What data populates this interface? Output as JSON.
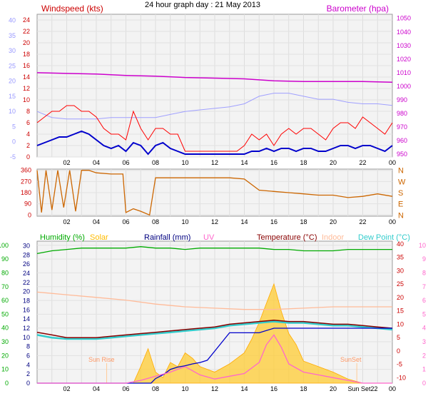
{
  "page_title": "24 hour graph day : 21 May 2013",
  "chart_data": [
    {
      "id": "wind-baro",
      "type": "line",
      "left_axis_outer": {
        "ticks": [
          "-5",
          "0",
          "5",
          "10",
          "15",
          "20",
          "25",
          "30",
          "35",
          "40"
        ],
        "color": "#9999ff"
      },
      "left_axis_inner": {
        "ticks": [
          "0",
          "2",
          "4",
          "6",
          "8",
          "10",
          "12",
          "14",
          "16",
          "18",
          "20",
          "22",
          "24"
        ],
        "color": "#cc0000"
      },
      "right_axis": {
        "ticks": [
          "950",
          "960",
          "970",
          "980",
          "990",
          "1000",
          "1010",
          "1020",
          "1030",
          "1040",
          "1050"
        ],
        "color": "#cc00cc"
      },
      "x_ticks": [
        "02",
        "04",
        "06",
        "08",
        "10",
        "12",
        "14",
        "16",
        "18",
        "20",
        "22",
        "00"
      ],
      "labels": {
        "windspeed": "Windspeed (kts)",
        "barometer": "Barometer (hpa)"
      },
      "colors": {
        "gust": "#ff0000",
        "avg": "#0000cc",
        "temp": "#a0a0ff",
        "baro": "#cc00cc"
      },
      "series": [
        {
          "key": "baro",
          "x": [
            0,
            2,
            4,
            6,
            8,
            10,
            12,
            14,
            16,
            18,
            20,
            22,
            24
          ],
          "values": [
            1010,
            1009.5,
            1009,
            1008,
            1007.5,
            1006.5,
            1006,
            1005.5,
            1004,
            1003.5,
            1003.5,
            1003.5,
            1003
          ]
        },
        {
          "key": "temp",
          "x": [
            0,
            1,
            2,
            3,
            4,
            5,
            6,
            7,
            8,
            9,
            10,
            11,
            12,
            13,
            14,
            15,
            16,
            17,
            18,
            19,
            20,
            21,
            22,
            23,
            24
          ],
          "values": [
            10,
            8,
            7.5,
            7.5,
            7.5,
            8,
            8,
            8,
            8,
            9,
            10,
            10.5,
            11,
            11.5,
            12.5,
            15,
            16,
            16,
            15,
            14,
            14,
            13,
            12.5,
            12.5,
            12
          ]
        },
        {
          "key": "gust",
          "x": [
            0,
            0.5,
            1,
            1.5,
            2,
            2.5,
            3,
            3.5,
            4,
            4.5,
            5,
            5.5,
            6,
            6.5,
            7,
            7.5,
            8,
            8.5,
            9,
            9.5,
            10,
            10.5,
            11,
            11.5,
            12,
            12.5,
            13,
            13.5,
            14,
            14.5,
            15,
            15.5,
            16,
            16.5,
            17,
            17.5,
            18,
            18.5,
            19,
            19.5,
            20,
            20.5,
            21,
            21.5,
            22,
            22.5,
            23,
            23.5,
            24
          ],
          "values": [
            6,
            7,
            8,
            8,
            9,
            9,
            8,
            8,
            7,
            5,
            4,
            4,
            3,
            8,
            5,
            3,
            5,
            5,
            4,
            4,
            1,
            1,
            1,
            1,
            1,
            1,
            1,
            1,
            2,
            4,
            3,
            4,
            2,
            4,
            5,
            4,
            5,
            5,
            4,
            3,
            5,
            6,
            6,
            5,
            7,
            6,
            5,
            4,
            6
          ]
        },
        {
          "key": "avg",
          "x": [
            0,
            0.5,
            1,
            1.5,
            2,
            2.5,
            3,
            3.5,
            4,
            4.5,
            5,
            5.5,
            6,
            6.5,
            7,
            7.5,
            8,
            8.5,
            9,
            9.5,
            10,
            10.5,
            11,
            11.5,
            12,
            12.5,
            13,
            13.5,
            14,
            14.5,
            15,
            15.5,
            16,
            16.5,
            17,
            17.5,
            18,
            18.5,
            19,
            19.5,
            20,
            20.5,
            21,
            21.5,
            22,
            22.5,
            23,
            23.5,
            24
          ],
          "values": [
            2,
            2.5,
            3,
            3.5,
            3.5,
            4,
            4.5,
            4,
            3,
            2,
            1.5,
            2,
            1,
            2.5,
            2,
            0.5,
            2,
            2.5,
            1.5,
            1,
            0.5,
            0.5,
            0.5,
            0.5,
            0.5,
            0.5,
            0.5,
            0.5,
            0.5,
            1,
            1,
            1.5,
            1,
            1.5,
            1.5,
            1,
            1.5,
            1.5,
            1,
            1,
            1.5,
            2,
            2,
            1.5,
            2,
            2,
            1.5,
            1,
            2
          ]
        }
      ]
    },
    {
      "id": "wind-direction",
      "type": "line",
      "left_axis": {
        "ticks": [
          "0",
          "90",
          "180",
          "270",
          "360"
        ],
        "color": "#cc0000"
      },
      "right_axis": {
        "ticks": [
          "N",
          "E",
          "S",
          "W",
          "N"
        ],
        "color": "#cc6600"
      },
      "x_ticks": [
        "02",
        "04",
        "06",
        "08",
        "10",
        "12",
        "14",
        "16",
        "18",
        "20",
        "22",
        "00"
      ],
      "colors": {
        "direction": "#cc6600"
      },
      "series": [
        {
          "key": "direction",
          "x": [
            0,
            0.3,
            0.6,
            1,
            1.4,
            1.8,
            2.2,
            2.6,
            3,
            3.5,
            4,
            5,
            5.8,
            6,
            6.5,
            7,
            7.6,
            8,
            9,
            10,
            11,
            12,
            13,
            14,
            15,
            16,
            17,
            18,
            19,
            20,
            21,
            22,
            23,
            24
          ],
          "values": [
            360,
            20,
            360,
            40,
            360,
            60,
            360,
            30,
            360,
            360,
            340,
            330,
            330,
            20,
            50,
            30,
            0,
            300,
            300,
            300,
            300,
            300,
            300,
            290,
            200,
            190,
            180,
            170,
            160,
            160,
            140,
            150,
            170,
            150
          ]
        }
      ]
    },
    {
      "id": "humidity-temp-rain",
      "type": "line",
      "humidity_axis": {
        "ticks": [
          "0",
          "10",
          "20",
          "30",
          "40",
          "50",
          "60",
          "70",
          "80",
          "90",
          "100"
        ],
        "color": "#00aa00"
      },
      "rain_axis": {
        "ticks": [
          "0",
          "2",
          "4",
          "6",
          "8",
          "10",
          "12",
          "14",
          "16",
          "18",
          "20",
          "22",
          "24",
          "26",
          "28",
          "30"
        ],
        "color": "#000080"
      },
      "temp_axis": {
        "ticks": [
          "-10",
          "-5",
          "0",
          "5",
          "10",
          "15",
          "20",
          "25",
          "30",
          "35",
          "40"
        ],
        "color": "#cc0000"
      },
      "uv_axis": {
        "ticks": [
          "0",
          "1",
          "2",
          "3",
          "4",
          "5",
          "6",
          "7",
          "8",
          "9",
          "10"
        ],
        "color": "#ff66cc"
      },
      "x_ticks": [
        "02",
        "04",
        "06",
        "08",
        "10",
        "12",
        "14",
        "16",
        "18",
        "20",
        "Sun Set22",
        "00"
      ],
      "labels": {
        "humidity": "Humidity (%)",
        "solar": "Solar",
        "rainfall": "Rainfall (mm)",
        "uv": "UV",
        "temperature": "Temperature (°C)",
        "indoor": "Indoor",
        "dew": "Dew Point (°C)",
        "sunrise": "Sun Rise",
        "sunset": "SunSet"
      },
      "colors": {
        "humidity": "#00aa00",
        "solar": "#ffcc33",
        "rain": "#0000cc",
        "uv": "#ff66cc",
        "temp": "#880000",
        "indoor": "#ffbb99",
        "dew": "#33cccc"
      },
      "series": [
        {
          "key": "humidity",
          "x": [
            0,
            1,
            2,
            3,
            4,
            5,
            6,
            7,
            8,
            9,
            10,
            11,
            12,
            13,
            14,
            15,
            16,
            17,
            18,
            19,
            20,
            21,
            22,
            23,
            24
          ],
          "values": [
            94,
            96,
            97,
            98,
            98,
            98,
            98,
            99,
            98,
            98,
            97,
            98,
            98,
            98,
            98,
            98,
            97,
            97,
            96,
            96,
            96,
            97,
            97,
            97,
            97
          ]
        },
        {
          "key": "indoor",
          "x": [
            0,
            2,
            4,
            6,
            8,
            10,
            12,
            14,
            16,
            18,
            20,
            22,
            24
          ],
          "values": [
            22,
            21,
            20,
            19,
            17.5,
            16.5,
            16,
            15.5,
            15.5,
            16,
            16.5,
            16.5,
            16.5
          ]
        },
        {
          "key": "temp",
          "x": [
            0,
            1,
            2,
            3,
            4,
            5,
            6,
            7,
            8,
            9,
            10,
            11,
            12,
            13,
            14,
            15,
            16,
            17,
            18,
            19,
            20,
            21,
            22,
            23,
            24
          ],
          "values": [
            7,
            6,
            5,
            5,
            5,
            5.5,
            6,
            6.5,
            7,
            7.5,
            8,
            8.5,
            9,
            10,
            10.5,
            11,
            11.5,
            11,
            11,
            10.5,
            10,
            10,
            9.5,
            9,
            8.5
          ]
        },
        {
          "key": "dew",
          "x": [
            0,
            1,
            2,
            3,
            4,
            5,
            6,
            7,
            8,
            9,
            10,
            11,
            12,
            13,
            14,
            15,
            16,
            17,
            18,
            19,
            20,
            21,
            22,
            23,
            24
          ],
          "values": [
            6,
            5,
            4.5,
            4.5,
            4.5,
            5,
            5.5,
            6,
            6.5,
            7,
            7.5,
            8,
            8.5,
            9.5,
            10,
            10.5,
            11,
            10.5,
            10.5,
            10,
            9.5,
            9.5,
            9,
            8.5,
            8
          ]
        },
        {
          "key": "rain",
          "x": [
            0,
            7.7,
            8,
            8.3,
            8.6,
            9,
            9.5,
            10,
            10.5,
            11,
            11.5,
            12,
            13,
            14,
            15,
            16,
            17,
            18,
            19,
            20,
            21,
            22,
            23,
            24
          ],
          "values": [
            0,
            0,
            1,
            1.5,
            2,
            3,
            3.5,
            3.8,
            4.2,
            4.5,
            5,
            7,
            11,
            11,
            11,
            12,
            12,
            12,
            12,
            12,
            12,
            12,
            12,
            12
          ]
        },
        {
          "key": "uv",
          "x": [
            0,
            6,
            7,
            8,
            9,
            10,
            11,
            12,
            13,
            14,
            15,
            15.5,
            16,
            16.5,
            17,
            18,
            19,
            20,
            21,
            22,
            24
          ],
          "values": [
            0,
            0,
            0.2,
            0.5,
            0.8,
            1.2,
            0.6,
            0.3,
            0.5,
            0.7,
            1.5,
            2.8,
            3.5,
            2.6,
            1.4,
            0.8,
            0.6,
            0.4,
            0.2,
            0,
            0
          ]
        },
        {
          "key": "solar",
          "x": [
            0,
            6.5,
            7,
            7.5,
            8,
            8.5,
            9,
            9.5,
            10,
            10.5,
            11,
            12,
            13,
            14,
            14.5,
            15,
            15.5,
            16,
            16.5,
            17,
            17.5,
            18,
            19,
            20,
            21,
            22,
            24
          ],
          "values": [
            0,
            0,
            1.2,
            2.5,
            0.8,
            0.4,
            1.5,
            1.2,
            2.2,
            1.8,
            1.2,
            0.8,
            1.4,
            2.2,
            3.2,
            4.4,
            5.8,
            7.2,
            5.2,
            3.6,
            2.8,
            1.6,
            1.2,
            0.8,
            0.3,
            0,
            0
          ]
        }
      ]
    }
  ]
}
